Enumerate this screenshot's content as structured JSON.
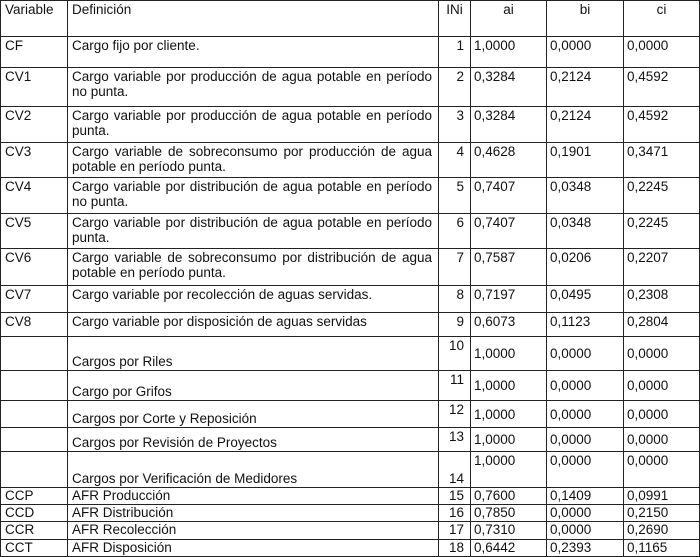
{
  "table": {
    "headers": [
      "Variable",
      "Definición",
      "INi",
      "ai",
      "bi",
      "ci"
    ],
    "rows": [
      {
        "variable": "CF",
        "definicion": "Cargo fijo por cliente.",
        "ini": "1",
        "ai": "1,0000",
        "bi": "0,0000",
        "ci": "0,0000"
      },
      {
        "variable": "CV1",
        "definicion": "Cargo variable por producción de agua potable en período no punta.",
        "ini": "2",
        "ai": "0,3284",
        "bi": "0,2124",
        "ci": "0,4592"
      },
      {
        "variable": "CV2",
        "definicion": "Cargo variable por producción de agua potable en período punta.",
        "ini": "3",
        "ai": "0,3284",
        "bi": "0,2124",
        "ci": "0,4592"
      },
      {
        "variable": "CV3",
        "definicion": "Cargo variable de sobreconsumo por producción de agua potable en período punta.",
        "ini": "4",
        "ai": "0,4628",
        "bi": "0,1901",
        "ci": "0,3471"
      },
      {
        "variable": "CV4",
        "definicion": "Cargo variable por distribución de agua potable en período no punta.",
        "ini": "5",
        "ai": "0,7407",
        "bi": "0,0348",
        "ci": "0,2245"
      },
      {
        "variable": "CV5",
        "definicion": "Cargo variable por distribución de agua potable en período punta.",
        "ini": "6",
        "ai": "0,7407",
        "bi": "0,0348",
        "ci": "0,2245"
      },
      {
        "variable": "CV6",
        "definicion": "Cargo variable de sobreconsumo por distribución de agua potable en período punta.",
        "ini": "7",
        "ai": "0,7587",
        "bi": "0,0206",
        "ci": "0,2207"
      },
      {
        "variable": "CV7",
        "definicion": "Cargo variable por recolección de aguas servidas.",
        "ini": "8",
        "ai": "0,7197",
        "bi": "0,0495",
        "ci": "0,2308"
      },
      {
        "variable": "CV8",
        "definicion": "Cargo variable por disposición de aguas servidas",
        "ini": "9",
        "ai": "0,6073",
        "bi": "0,1123",
        "ci": "0,2804"
      },
      {
        "variable": "",
        "definicion": "Cargos por Riles",
        "ini": "10",
        "ai": "1,0000",
        "bi": "0,0000",
        "ci": "0,0000"
      },
      {
        "variable": "",
        "definicion": "Cargo por Grifos",
        "ini": "11",
        "ai": "1,0000",
        "bi": "0,0000",
        "ci": "0,0000"
      },
      {
        "variable": "",
        "definicion": "Cargos por Corte y Reposición",
        "ini": "12",
        "ai": "1,0000",
        "bi": "0,0000",
        "ci": "0,0000"
      },
      {
        "variable": "",
        "definicion": "Cargos por Revisión de Proyectos",
        "ini": "13",
        "ai": "1,0000",
        "bi": "0,0000",
        "ci": "0,0000"
      },
      {
        "variable": "",
        "definicion": "Cargos por Verificación de Medidores",
        "ini": "14",
        "ai": "1,0000",
        "bi": "0,0000",
        "ci": "0,0000"
      },
      {
        "variable": "CCP",
        "definicion": "AFR Producción",
        "ini": "15",
        "ai": "0,7600",
        "bi": "0,1409",
        "ci": "0,0991"
      },
      {
        "variable": "CCD",
        "definicion": "AFR Distribución",
        "ini": "16",
        "ai": "0,7850",
        "bi": "0,0000",
        "ci": "0,2150"
      },
      {
        "variable": "CCR",
        "definicion": "AFR Recolección",
        "ini": "17",
        "ai": "0,7310",
        "bi": "0,0000",
        "ci": "0,2690"
      },
      {
        "variable": "CCT",
        "definicion": "AFR Disposición",
        "ini": "18",
        "ai": "0,6442",
        "bi": "0,2393",
        "ci": "0,1165"
      }
    ]
  }
}
